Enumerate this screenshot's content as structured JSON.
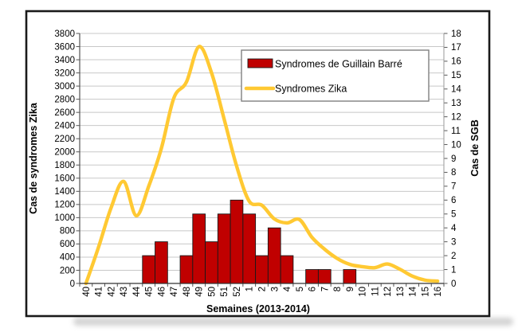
{
  "chart_data": {
    "type": "bar",
    "title": "",
    "xlabel": "Semaines (2013-2014)",
    "ylabel_left": "Cas de syndromes Zika",
    "ylabel_right": "Cas de SGB",
    "ylim_left": [
      0,
      3800
    ],
    "ylim_right": [
      0,
      18
    ],
    "yticks_left": [
      0,
      200,
      400,
      600,
      800,
      1000,
      1200,
      1400,
      1600,
      1800,
      2000,
      2200,
      2400,
      2600,
      2800,
      3000,
      3200,
      3400,
      3600,
      3800
    ],
    "yticks_right": [
      0,
      1,
      2,
      3,
      4,
      5,
      6,
      7,
      8,
      9,
      10,
      11,
      12,
      13,
      14,
      15,
      16,
      17,
      18
    ],
    "grid": true,
    "legend_position": "inside-top-right",
    "categories": [
      "40",
      "41",
      "42",
      "43",
      "44",
      "45",
      "46",
      "47",
      "48",
      "49",
      "50",
      "51",
      "52",
      "1",
      "2",
      "3",
      "4",
      "5",
      "6",
      "7",
      "8",
      "9",
      "10",
      "11",
      "12",
      "13",
      "14",
      "15",
      "16"
    ],
    "series": [
      {
        "name": "Syndromes de Guillain Barré",
        "type": "bar",
        "axis": "right",
        "color": "#C00000",
        "values": [
          0,
          0,
          0,
          0,
          0,
          2,
          3,
          0,
          2,
          5,
          3,
          5,
          6,
          5,
          2,
          4,
          2,
          0,
          1,
          1,
          0,
          1,
          0,
          0,
          0,
          0,
          0,
          0,
          0
        ]
      },
      {
        "name": "Syndromes Zika",
        "type": "line",
        "axis": "left",
        "color": "#FFC933",
        "values": [
          0,
          550,
          1150,
          1550,
          1030,
          1480,
          2050,
          2820,
          3060,
          3600,
          3200,
          2500,
          1780,
          1250,
          1190,
          980,
          920,
          970,
          700,
          520,
          380,
          290,
          255,
          240,
          295,
          215,
          110,
          50,
          35
        ]
      }
    ],
    "colors": {
      "grid": "#c8c8c8",
      "frame_border": "#1a1a1a",
      "bar_outline": "#1a1a1a",
      "axis_line": "#555555",
      "legend_border": "#808080"
    }
  }
}
